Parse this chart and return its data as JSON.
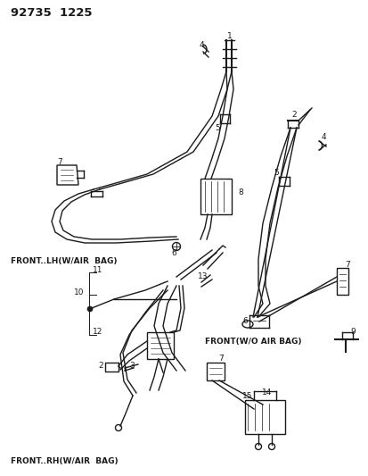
{
  "title": "92735  1225",
  "bg_color": "#ffffff",
  "text_color": "#1a1a1a",
  "label_lh": "FRONT..LH(W/AIR  BAG)",
  "label_wo": "FRONT(W/O AIR BAG)",
  "label_rh": "FRONT..RH(W/AIR  BAG)",
  "figsize": [
    4.14,
    5.33
  ],
  "dpi": 100
}
